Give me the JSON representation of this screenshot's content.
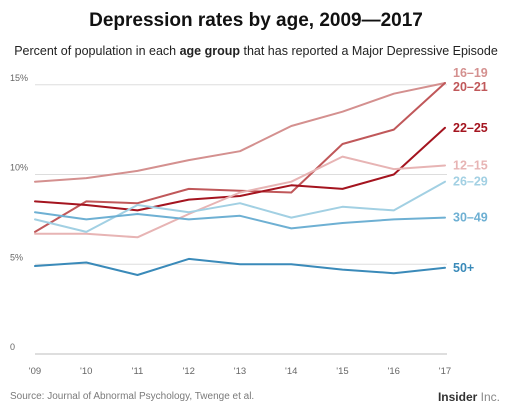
{
  "title": "Depression rates by age, 2009—2017",
  "subtitle": {
    "before": "Percent of population in each ",
    "bold": "age group",
    "after": " that has reported a Major Depressive Episode"
  },
  "source": "Source: Journal of Abnormal Psychology, Twenge et al.",
  "brand": {
    "main": "Insider",
    "suffix": " Inc."
  },
  "chart_data": {
    "type": "line",
    "x": [
      "'09",
      "'10",
      "'11",
      "'12",
      "'13",
      "'14",
      "'15",
      "'16",
      "'17"
    ],
    "y_ticks": [
      {
        "value": 0,
        "label": "0"
      },
      {
        "value": 5,
        "label": "5%"
      },
      {
        "value": 10,
        "label": "10%"
      },
      {
        "value": 15,
        "label": "15%"
      }
    ],
    "ylim": [
      0,
      15.5
    ],
    "grid": true,
    "series": [
      {
        "name": "16–19",
        "color": "#d4908f",
        "values": [
          9.6,
          9.8,
          10.2,
          10.8,
          11.3,
          12.7,
          13.5,
          14.5,
          15.1
        ]
      },
      {
        "name": "20–21",
        "color": "#c0585a",
        "values": [
          6.8,
          8.5,
          8.4,
          9.2,
          9.1,
          9.0,
          11.7,
          12.5,
          15.1
        ]
      },
      {
        "name": "22–25",
        "color": "#a4141f",
        "values": [
          8.5,
          8.3,
          8.0,
          8.6,
          8.8,
          9.4,
          9.2,
          10.0,
          12.6
        ]
      },
      {
        "name": "12–15",
        "color": "#e7b4b4",
        "values": [
          6.7,
          6.7,
          6.5,
          7.8,
          9.0,
          9.6,
          11.0,
          10.3,
          10.5
        ]
      },
      {
        "name": "26–29",
        "color": "#a2d0e3",
        "values": [
          7.5,
          6.8,
          8.3,
          7.9,
          8.4,
          7.6,
          8.2,
          8.0,
          9.6
        ]
      },
      {
        "name": "30–49",
        "color": "#6eb0d3",
        "values": [
          7.9,
          7.5,
          7.8,
          7.5,
          7.7,
          7.0,
          7.3,
          7.5,
          7.6
        ]
      },
      {
        "name": "50+",
        "color": "#3a8ab9",
        "values": [
          4.9,
          5.1,
          4.4,
          5.3,
          5.0,
          5.0,
          4.7,
          4.5,
          4.8
        ]
      }
    ],
    "label_order": [
      "16–19",
      "20–21",
      "22–25",
      "12–15",
      "26–29",
      "30–49",
      "50+"
    ]
  }
}
